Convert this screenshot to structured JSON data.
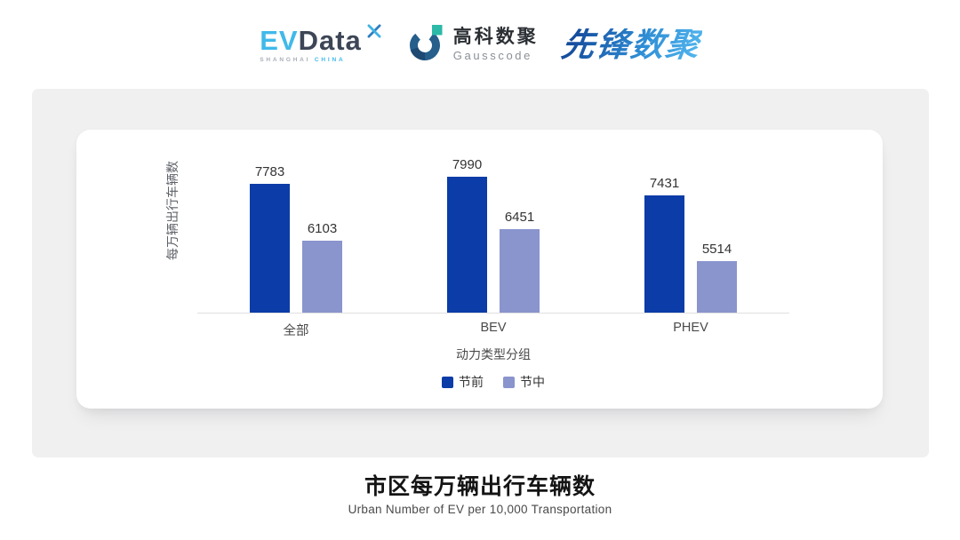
{
  "header": {
    "evdata": {
      "part1": "EV",
      "part2": "Data",
      "sub1": "SHANGHAI",
      "sub2": "CHINA"
    },
    "gausscode": {
      "name_cn": "高科数聚",
      "name_en": "Gausscode"
    },
    "xianfeng": {
      "text": "先锋数聚"
    }
  },
  "chart_data": {
    "type": "bar",
    "title": "市区每万辆出行车辆数",
    "subtitle": "Urban Number of EV per 10,000 Transportation",
    "categories": [
      "全部",
      "BEV",
      "PHEV"
    ],
    "series": [
      {
        "name": "节前",
        "color": "#0B3CA7",
        "values": [
          7783,
          7990,
          7431
        ]
      },
      {
        "name": "节中",
        "color": "#8A94CD",
        "values": [
          6103,
          6451,
          5514
        ]
      }
    ],
    "xlabel": "动力类型分组",
    "ylabel": "每万辆出行车辆数",
    "ylim": [
      4000,
      8500
    ],
    "grid": false,
    "legend_position": "bottom",
    "value_labels": true,
    "axis_line_color": "#E0E0E0"
  }
}
